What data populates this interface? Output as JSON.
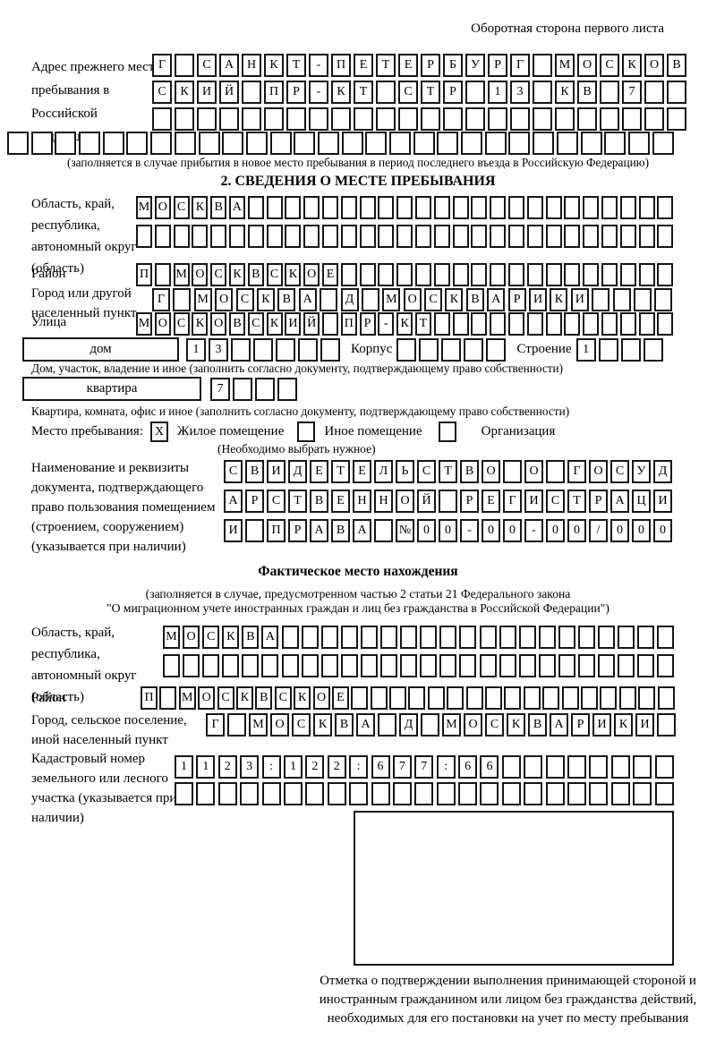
{
  "page": {
    "back_note": "Оборотная сторона первого листа"
  },
  "prev_address": {
    "label": "Адрес прежнего места пребывания в Российской Федерации",
    "rows": [
      {
        "cells": "Г САНКТ-ПЕТЕРБУРГ МОСКОВ",
        "total": 24
      },
      {
        "cells": "СКИЙ ПР-КТ СТР 13 КВ 7",
        "total": 24
      },
      {
        "cells": "",
        "total": 24
      },
      {
        "cells": "",
        "total": 28
      }
    ],
    "note": "(заполняется в случае прибытия в новое место пребывания в период последнего въезда в Российскую Федерацию)"
  },
  "section2": {
    "title": "2. СВЕДЕНИЯ О МЕСТЕ ПРЕБЫВАНИЯ",
    "region": {
      "label": "Область, край, республика, автономный округ (область)",
      "rows": [
        {
          "cells": "МОСКВА",
          "total": 29
        },
        {
          "cells": "",
          "total": 29
        }
      ]
    },
    "district": {
      "label": "Район",
      "row": {
        "cells": "П МОСКВСКОЕ",
        "total": 29
      }
    },
    "city": {
      "label": "Город или другой населенный пункт",
      "row": {
        "cells": "Г МОСКВА Д МОСКВАРИКИ",
        "total": 25
      }
    },
    "street": {
      "label": "Улица",
      "row": {
        "cells": "МОСКОВСКИЙ ПР-КТ",
        "total": 29
      }
    },
    "house": {
      "type_label": "дом",
      "number": {
        "cells": "13",
        "total": 7
      },
      "korpus_label": "Корпус",
      "korpus": {
        "cells": "",
        "total": 5
      },
      "stroenie_label": "Строение",
      "stroenie": {
        "cells": "1",
        "total": 4
      },
      "note": "Дом, участок, владение и иное (заполнить согласно документу, подтверждающему право собственности)"
    },
    "apartment": {
      "type_label": "квартира",
      "number": {
        "cells": "7",
        "total": 4
      },
      "note": "Квартира, комната, офис и иное (заполнить согласно документу, подтверждающему право собственности)"
    },
    "stay": {
      "label": "Место пребывания:",
      "options": [
        {
          "mark": "X",
          "label": "Жилое помещение"
        },
        {
          "mark": "",
          "label": "Иное помещение"
        },
        {
          "mark": "",
          "label": "Организация"
        }
      ],
      "note": "(Необходимо выбрать нужное)"
    },
    "document": {
      "label": "Наименование и реквизиты документа, подтверждающего право пользования помещением (строением, сооружением) (указывается при наличии)",
      "rows": [
        {
          "cells": "СВИДЕТЕЛЬСТВО О ГОСУД",
          "total": 21
        },
        {
          "cells": "АРСТВЕННОЙ РЕГИСТРАЦИ",
          "total": 21
        },
        {
          "cells": "И ПРАВА №00-00-00/000",
          "total": 21
        }
      ]
    }
  },
  "fact": {
    "title": "Фактическое место нахождения",
    "note1": "(заполняется в случае, предусмотренном частью 2 статьи 21 Федерального закона",
    "note2": "\"О миграционном учете иностранных граждан и лиц без гражданства в Российской Федерации\")",
    "region": {
      "label": "Область, край, республика, автономный округ (область)",
      "rows": [
        {
          "cells": "МОСКВА",
          "total": 26
        },
        {
          "cells": "",
          "total": 26
        }
      ]
    },
    "district": {
      "label": "Район",
      "row": {
        "cells": "П МОСКВСКОЕ",
        "total": 28
      }
    },
    "city": {
      "label": "Город, сельское поселение, иной населенный пункт",
      "row": {
        "cells": "Г МОСКВА Д МОСКВАРИКИ",
        "total": 22
      }
    },
    "cadastre": {
      "label": "Кадастровый номер земельного или лесного участка (указывается при наличии)",
      "rows": [
        {
          "cells": "1123:122:677:66",
          "total": 23
        },
        {
          "cells": "",
          "total": 23
        }
      ]
    }
  },
  "stamp": {
    "note": "Отметка о подтверждении выполнения принимающей стороной и иностранным гражданином или лицом без гражданства действий, необходимых для его постановки на учет по месту пребывания"
  }
}
